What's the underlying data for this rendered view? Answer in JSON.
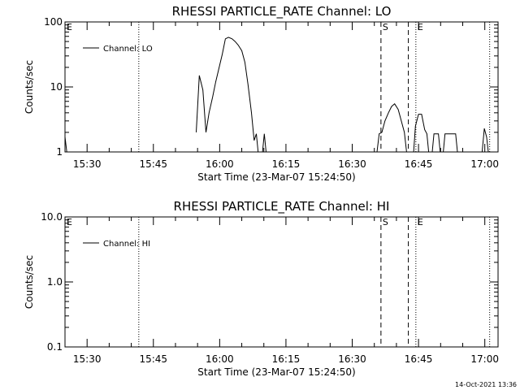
{
  "timestamp": "14-Oct-2021 13:36",
  "chart_data": [
    {
      "type": "line",
      "title": "RHESSI PARTICLE_RATE Channel: LO",
      "xlabel": "Start Time (23-Mar-07 15:24:50)",
      "ylabel": "Counts/sec",
      "yscale": "log",
      "xlim_min": [
        0,
        98
      ],
      "ylim": [
        1,
        100
      ],
      "yticks": [
        1,
        10,
        100
      ],
      "ytick_labels": [
        "1",
        "10",
        "100"
      ],
      "xticks_min": [
        5,
        20,
        35,
        50,
        65,
        80,
        95
      ],
      "xtick_labels": [
        "15:30",
        "15:45",
        "16:00",
        "16:15",
        "16:30",
        "16:45",
        "17:00"
      ],
      "legend": "top-left",
      "markers": [
        {
          "label": "E",
          "x_min": 0,
          "style": "dotted"
        },
        {
          "label": "",
          "x_min": 16.7,
          "style": "dotted"
        },
        {
          "label": "S",
          "x_min": 71.5,
          "style": "dashed"
        },
        {
          "label": "",
          "x_min": 77.7,
          "style": "dashed"
        },
        {
          "label": "E",
          "x_min": 79.4,
          "style": "dotted"
        },
        {
          "label": "",
          "x_min": 96.1,
          "style": "dotted"
        }
      ],
      "series": [
        {
          "name": "Channel: LO",
          "color": "#000000",
          "segments": [
            [
              [
                0,
                1.7
              ],
              [
                0.4,
                1
              ]
            ],
            [
              [
                29.7,
                2
              ],
              [
                30.4,
                15
              ],
              [
                31.2,
                9
              ],
              [
                31.9,
                2
              ],
              [
                32.6,
                4
              ],
              [
                33.4,
                7
              ],
              [
                34.1,
                12
              ],
              [
                34.8,
                19
              ],
              [
                35.6,
                32
              ],
              [
                36.3,
                55
              ],
              [
                37.0,
                58
              ],
              [
                37.8,
                55
              ],
              [
                38.5,
                50
              ],
              [
                39.2,
                44
              ],
              [
                40.0,
                36
              ],
              [
                40.7,
                24
              ],
              [
                41.4,
                11
              ],
              [
                42.2,
                4
              ],
              [
                42.8,
                1.5
              ],
              [
                43.3,
                1.9
              ],
              [
                43.7,
                1
              ]
            ],
            [
              [
                44.7,
                1
              ],
              [
                45.1,
                1.9
              ],
              [
                45.5,
                1
              ]
            ],
            [
              [
                70.6,
                1
              ],
              [
                71.1,
                1.9
              ],
              [
                71.7,
                2
              ],
              [
                72.4,
                3
              ],
              [
                73.2,
                4
              ],
              [
                73.9,
                5
              ],
              [
                74.6,
                5.5
              ],
              [
                75.4,
                4.5
              ],
              [
                76.1,
                3
              ],
              [
                76.8,
                2
              ],
              [
                77.3,
                1
              ]
            ],
            [
              [
                78.9,
                1
              ],
              [
                79.3,
                2.5
              ],
              [
                80.0,
                3.8
              ],
              [
                80.7,
                3.8
              ],
              [
                81.4,
                2.2
              ],
              [
                81.9,
                1.9
              ],
              [
                82.3,
                1
              ]
            ],
            [
              [
                83.1,
                1
              ],
              [
                83.5,
                1.9
              ],
              [
                84.5,
                1.9
              ],
              [
                84.9,
                1
              ]
            ],
            [
              [
                85.6,
                1
              ],
              [
                86.0,
                1.9
              ],
              [
                88.4,
                1.9
              ],
              [
                88.8,
                1
              ]
            ],
            [
              [
                94.4,
                1
              ],
              [
                94.9,
                2.3
              ],
              [
                95.4,
                1.7
              ],
              [
                95.8,
                1
              ]
            ]
          ]
        }
      ]
    },
    {
      "type": "line",
      "title": "RHESSI PARTICLE_RATE Channel: HI",
      "xlabel": "Start Time (23-Mar-07 15:24:50)",
      "ylabel": "Counts/sec",
      "yscale": "log",
      "xlim_min": [
        0,
        98
      ],
      "ylim": [
        0.1,
        10
      ],
      "yticks": [
        0.1,
        1,
        10
      ],
      "ytick_labels": [
        "0.1",
        "1.0",
        "10.0"
      ],
      "xticks_min": [
        5,
        20,
        35,
        50,
        65,
        80,
        95
      ],
      "xtick_labels": [
        "15:30",
        "15:45",
        "16:00",
        "16:15",
        "16:30",
        "16:45",
        "17:00"
      ],
      "legend": "top-left",
      "markers": [
        {
          "label": "E",
          "x_min": 0,
          "style": "dotted"
        },
        {
          "label": "",
          "x_min": 16.7,
          "style": "dotted"
        },
        {
          "label": "S",
          "x_min": 71.5,
          "style": "dashed"
        },
        {
          "label": "",
          "x_min": 77.7,
          "style": "dashed"
        },
        {
          "label": "E",
          "x_min": 79.4,
          "style": "dotted"
        },
        {
          "label": "",
          "x_min": 96.1,
          "style": "dotted"
        }
      ],
      "series": [
        {
          "name": "Channel: HI",
          "color": "#000000",
          "segments": []
        }
      ]
    }
  ]
}
